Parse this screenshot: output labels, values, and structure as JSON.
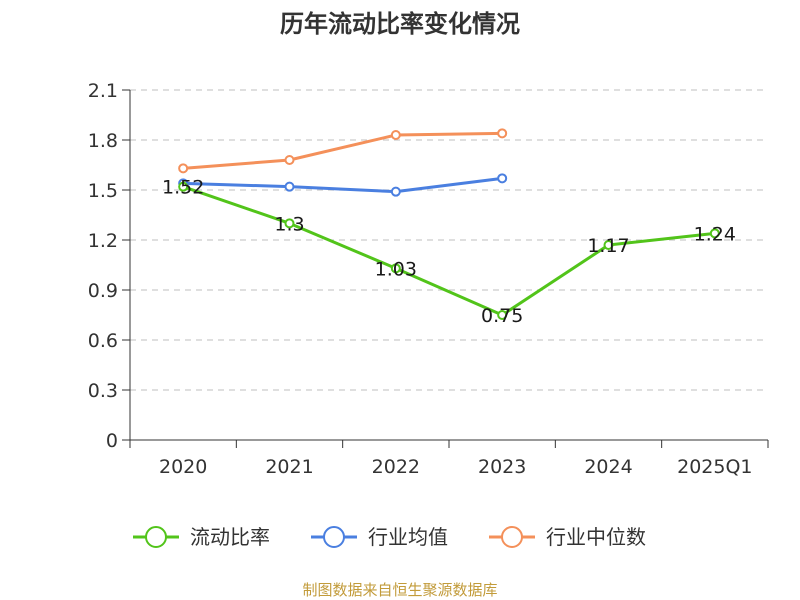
{
  "chart_data": {
    "type": "line",
    "title": "历年流动比率变化情况",
    "categories": [
      "2020",
      "2021",
      "2022",
      "2023",
      "2024",
      "2025Q1"
    ],
    "ylim": [
      0,
      2.1
    ],
    "yticks": [
      "0",
      "0.3",
      "0.6",
      "0.9",
      "1.2",
      "1.5",
      "1.8",
      "2.1"
    ],
    "grid": true,
    "legend_position": "bottom",
    "series": [
      {
        "name": "流动比率",
        "color": "#52c41a",
        "values": [
          1.52,
          1.3,
          1.03,
          0.75,
          1.17,
          1.24
        ],
        "labels": [
          "1.52",
          "1.3",
          "1.03",
          "0.75",
          "1.17",
          "1.24"
        ]
      },
      {
        "name": "行业均值",
        "color": "#4a7fe0",
        "values": [
          1.54,
          1.52,
          1.49,
          1.57,
          null,
          null
        ]
      },
      {
        "name": "行业中位数",
        "color": "#f4905a",
        "values": [
          1.63,
          1.68,
          1.83,
          1.84,
          null,
          null
        ]
      }
    ]
  },
  "source": "制图数据来自恒生聚源数据库"
}
